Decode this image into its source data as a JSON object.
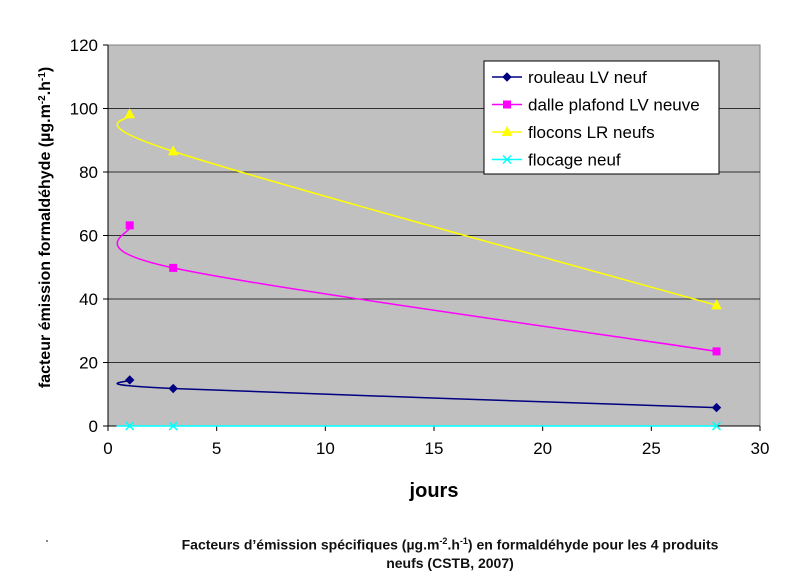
{
  "chart_data": {
    "type": "line",
    "xlabel": "jours",
    "ylabel": "facteur émission formaldéhyde (µg.m-2.h-1)",
    "ylabel_parts": [
      "facteur émission formaldéhyde (µg.m",
      "-2",
      ".h",
      "-1",
      ")"
    ],
    "xlim": [
      0,
      30
    ],
    "ylim": [
      0,
      120
    ],
    "x_ticks": [
      0,
      5,
      10,
      15,
      20,
      25,
      30
    ],
    "y_ticks": [
      0,
      20,
      40,
      60,
      80,
      100,
      120
    ],
    "grid": "horizontal",
    "legend_position": "top-right",
    "background": "#c0c0c0",
    "series": [
      {
        "name": "rouleau LV neuf",
        "color": "#000080",
        "marker": "diamond",
        "x": [
          1,
          3,
          28
        ],
        "y": [
          14.5,
          11.8,
          5.8
        ]
      },
      {
        "name": "dalle plafond LV neuve",
        "color": "#ff00ff",
        "marker": "square",
        "x": [
          1,
          3,
          28
        ],
        "y": [
          63.2,
          49.8,
          23.5
        ]
      },
      {
        "name": "flocons LR neufs",
        "color": "#ffff00",
        "marker": "triangle",
        "x": [
          1,
          3,
          28
        ],
        "y": [
          98.2,
          86.5,
          38.0
        ]
      },
      {
        "name": "flocage neuf",
        "color": "#00ffff",
        "marker": "x",
        "x": [
          1,
          3,
          28
        ],
        "y": [
          0,
          0,
          0
        ]
      }
    ]
  },
  "caption": {
    "parts": [
      "Facteurs d’émission spécifiques (µg.m",
      "-2",
      ".h",
      "-1",
      ") en formaldéhyde pour les 4 produits"
    ],
    "line2": "neufs (CSTB, 2007)"
  }
}
